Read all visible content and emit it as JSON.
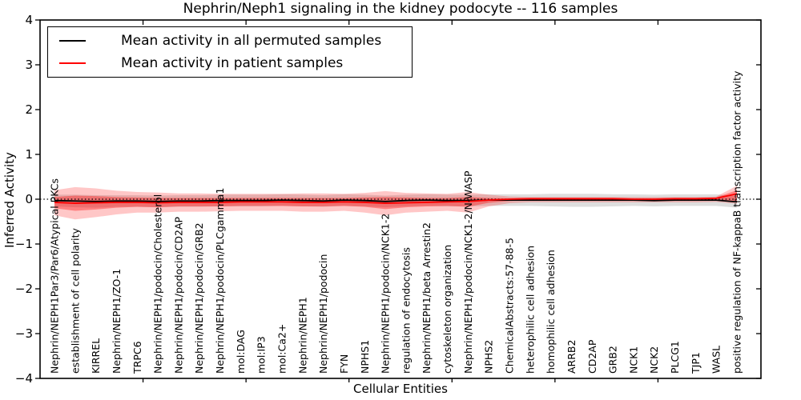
{
  "chart_data": {
    "type": "line",
    "title": "Nephrin/Neph1 signaling in the kidney podocyte -- 116 samples",
    "xlabel": "Cellular Entities",
    "ylabel": "Inferred Activity",
    "ylim": [
      -4,
      4
    ],
    "yticks": [
      4,
      3,
      2,
      1,
      0,
      -1,
      -2,
      -3,
      -4
    ],
    "grid": false,
    "legend_position": "upper left",
    "reference_line": {
      "y": 0,
      "style": "dotted",
      "color": "#000000"
    },
    "categories": [
      "Nephrin/NEPH1Par3/Par6/Atypical PKCs",
      "establishment of cell polarity",
      "KIRREL",
      "Nephrin/NEPH1/ZO-1",
      "TRPC6",
      "Nephrin/NEPH1/podocin/Cholesterol",
      "Nephrin/NEPH1/podocin/CD2AP",
      "Nephrin/NEPH1/podocin/GRB2",
      "Nephrin/NEPH1/podocin/PLCgamma1",
      "mol:DAG",
      "mol:IP3",
      "mol:Ca2+",
      "Nephrin/NEPH1",
      "Nephrin/NEPH1/podocin",
      "FYN",
      "NPHS1",
      "Nephrin/NEPH1/podocin/NCK1-2",
      "regulation of endocytosis",
      "Nephrin/NEPH1/beta Arrestin2",
      "cytoskeleton organization",
      "Nephrin/NEPH1/podocin/NCK1-2/N-WASP",
      "NPHS2",
      "ChemicalAbstracts:57-88-5",
      "heterophilic cell adhesion",
      "homophilic cell adhesion",
      "ARRB2",
      "CD2AP",
      "GRB2",
      "NCK1",
      "NCK2",
      "PLCG1",
      "TJP1",
      "WASL",
      "positive regulation of NF-kappaB transcription factor activity"
    ],
    "series": [
      {
        "name": "Mean activity in all permuted samples",
        "color": "#000000",
        "values": [
          -0.03,
          -0.04,
          -0.05,
          -0.04,
          -0.04,
          -0.05,
          -0.04,
          -0.04,
          -0.03,
          -0.03,
          -0.03,
          -0.02,
          -0.03,
          -0.04,
          -0.02,
          -0.03,
          -0.05,
          -0.03,
          -0.02,
          -0.03,
          -0.03,
          -0.02,
          -0.02,
          -0.02,
          -0.02,
          -0.02,
          -0.02,
          -0.02,
          -0.02,
          -0.03,
          -0.02,
          -0.02,
          -0.02,
          -0.06
        ]
      },
      {
        "name": "Mean activity in patient samples",
        "color": "#ff0000",
        "values": [
          -0.07,
          -0.09,
          -0.08,
          -0.07,
          -0.07,
          -0.08,
          -0.07,
          -0.07,
          -0.07,
          -0.06,
          -0.06,
          -0.06,
          -0.07,
          -0.07,
          -0.06,
          -0.07,
          -0.09,
          -0.08,
          -0.07,
          -0.06,
          -0.05,
          -0.02,
          0.0,
          0.01,
          0.01,
          0.01,
          0.01,
          0.01,
          0.0,
          0.0,
          0.01,
          0.01,
          0.02,
          0.12
        ]
      }
    ],
    "bands": [
      {
        "name": "permuted-samples-range",
        "color": "#000000",
        "opacity": 0.13,
        "upper": [
          0.1,
          0.1,
          0.09,
          0.09,
          0.09,
          0.08,
          0.09,
          0.09,
          0.1,
          0.1,
          0.1,
          0.11,
          0.1,
          0.09,
          0.11,
          0.1,
          0.08,
          0.1,
          0.11,
          0.1,
          0.1,
          0.11,
          0.11,
          0.11,
          0.12,
          0.12,
          0.12,
          0.11,
          0.11,
          0.1,
          0.11,
          0.11,
          0.11,
          0.07
        ],
        "lower": [
          -0.16,
          -0.18,
          -0.19,
          -0.17,
          -0.17,
          -0.18,
          -0.17,
          -0.17,
          -0.16,
          -0.16,
          -0.16,
          -0.15,
          -0.16,
          -0.17,
          -0.15,
          -0.16,
          -0.18,
          -0.16,
          -0.15,
          -0.16,
          -0.16,
          -0.15,
          -0.15,
          -0.15,
          -0.16,
          -0.17,
          -0.17,
          -0.16,
          -0.15,
          -0.16,
          -0.15,
          -0.15,
          -0.15,
          -0.19
        ]
      },
      {
        "name": "patient-samples-range-outer",
        "color": "#ff0000",
        "opacity": 0.22,
        "upper": [
          0.2,
          0.27,
          0.24,
          0.19,
          0.16,
          0.15,
          0.13,
          0.13,
          0.12,
          0.12,
          0.12,
          0.12,
          0.13,
          0.13,
          0.12,
          0.14,
          0.18,
          0.14,
          0.13,
          0.12,
          0.16,
          0.1,
          0.06,
          0.05,
          0.05,
          0.05,
          0.05,
          0.05,
          0.05,
          0.05,
          0.05,
          0.05,
          0.06,
          0.3
        ],
        "lower": [
          -0.36,
          -0.45,
          -0.4,
          -0.34,
          -0.3,
          -0.3,
          -0.28,
          -0.28,
          -0.27,
          -0.26,
          -0.26,
          -0.26,
          -0.28,
          -0.28,
          -0.26,
          -0.3,
          -0.36,
          -0.3,
          -0.28,
          -0.26,
          -0.3,
          -0.16,
          -0.09,
          -0.07,
          -0.07,
          -0.07,
          -0.07,
          -0.07,
          -0.07,
          -0.07,
          -0.07,
          -0.07,
          -0.06,
          -0.1
        ]
      },
      {
        "name": "patient-samples-range-inner",
        "color": "#ff0000",
        "opacity": 0.35,
        "upper": [
          0.05,
          0.08,
          0.07,
          0.05,
          0.04,
          0.03,
          0.03,
          0.03,
          0.03,
          0.03,
          0.03,
          0.03,
          0.03,
          0.03,
          0.03,
          0.04,
          0.05,
          0.04,
          0.03,
          0.03,
          0.05,
          0.03,
          0.02,
          0.03,
          0.03,
          0.03,
          0.03,
          0.03,
          0.02,
          0.02,
          0.03,
          0.03,
          0.04,
          0.2
        ],
        "lower": [
          -0.2,
          -0.26,
          -0.23,
          -0.19,
          -0.17,
          -0.18,
          -0.16,
          -0.16,
          -0.16,
          -0.15,
          -0.15,
          -0.15,
          -0.16,
          -0.16,
          -0.15,
          -0.17,
          -0.22,
          -0.18,
          -0.16,
          -0.15,
          -0.17,
          -0.08,
          -0.04,
          -0.02,
          -0.02,
          -0.02,
          -0.02,
          -0.02,
          -0.02,
          -0.02,
          -0.02,
          -0.02,
          -0.01,
          -0.04
        ]
      }
    ]
  }
}
